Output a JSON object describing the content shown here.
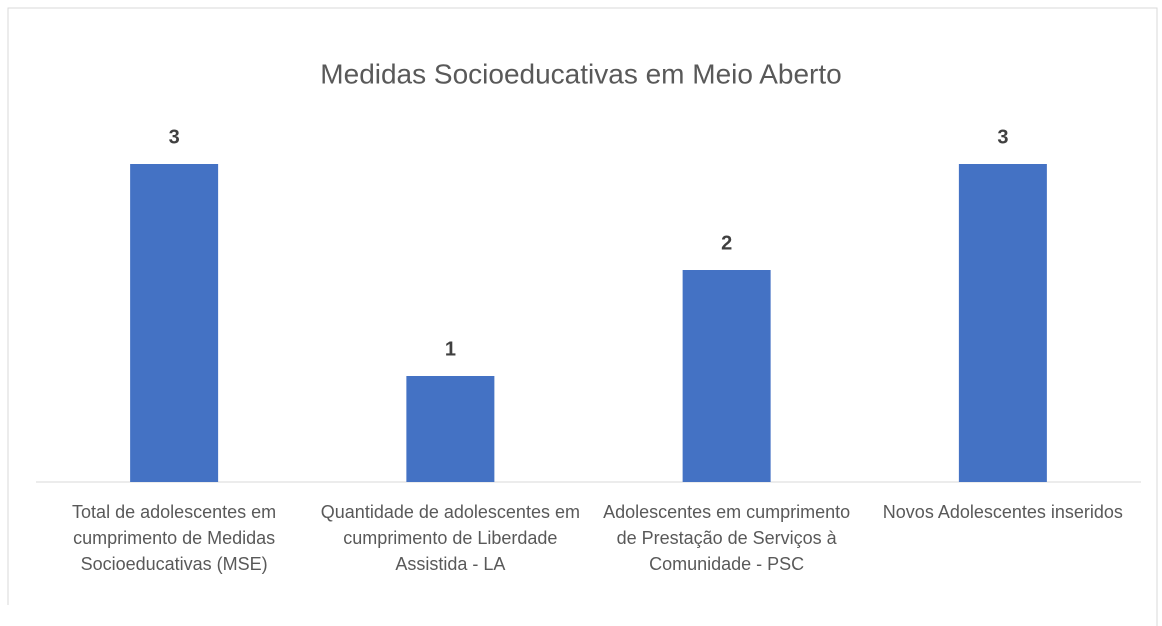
{
  "chart_data": {
    "type": "bar",
    "title": "Medidas Socioeducativas em Meio Aberto",
    "categories": [
      "Total de adolescentes em cumprimento de Medidas Socioeducativas (MSE)",
      "Quantidade de adolescentes em cumprimento de Liberdade Assistida - LA",
      "Adolescentes em cumprimento de Prestação de Serviços à Comunidade - PSC",
      "Novos Adolescentes inseridos"
    ],
    "values": [
      3,
      1,
      2,
      3
    ],
    "color": "#4472c4"
  }
}
